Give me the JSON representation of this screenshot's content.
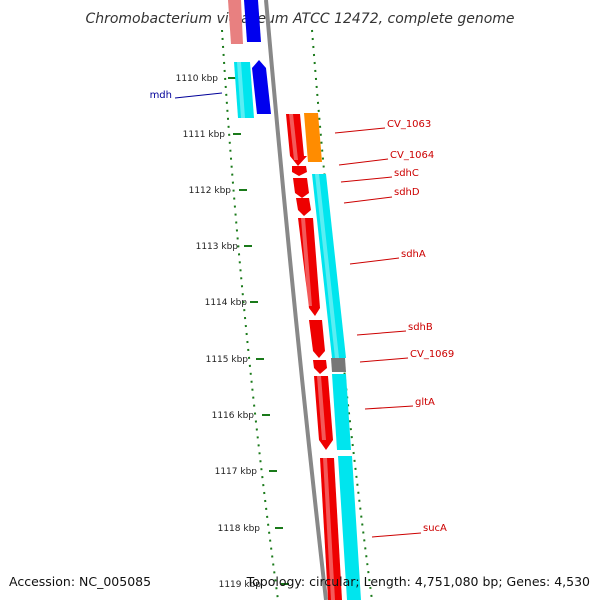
{
  "title": "Chromobacterium violaceum ATCC 12472, complete genome",
  "footer": {
    "accession": "Accession: NC_005085",
    "summary": "Topology: circular; Length: 4,751,080 bp; Genes: 4,530"
  },
  "colors": {
    "forward_gene": "#ee0000",
    "forward_cds": "#00e5ee",
    "reverse_gene": "#0000ee",
    "reverse_cds": "#00e5ee",
    "orange_cds": "#ff8c00",
    "gray_cds": "#777777",
    "backbone": "#888888",
    "tick": "#1a7a1a",
    "label_forward": "#cc0000",
    "label_reverse": "#000099"
  },
  "kbp_ticks": [
    "1110 kbp",
    "1111 kbp",
    "1112 kbp",
    "1113 kbp",
    "1114 kbp",
    "1115 kbp",
    "1116 kbp",
    "1117 kbp",
    "1118 kbp",
    "1119 kbp"
  ],
  "genes": [
    {
      "name": "mdh",
      "strand": "reverse"
    },
    {
      "name": "CV_1063",
      "strand": "forward"
    },
    {
      "name": "CV_1064",
      "strand": "forward"
    },
    {
      "name": "sdhC",
      "strand": "forward"
    },
    {
      "name": "sdhD",
      "strand": "forward"
    },
    {
      "name": "sdhA",
      "strand": "forward"
    },
    {
      "name": "sdhB",
      "strand": "forward"
    },
    {
      "name": "CV_1069",
      "strand": "forward"
    },
    {
      "name": "gltA",
      "strand": "forward"
    },
    {
      "name": "sucA",
      "strand": "forward"
    }
  ]
}
